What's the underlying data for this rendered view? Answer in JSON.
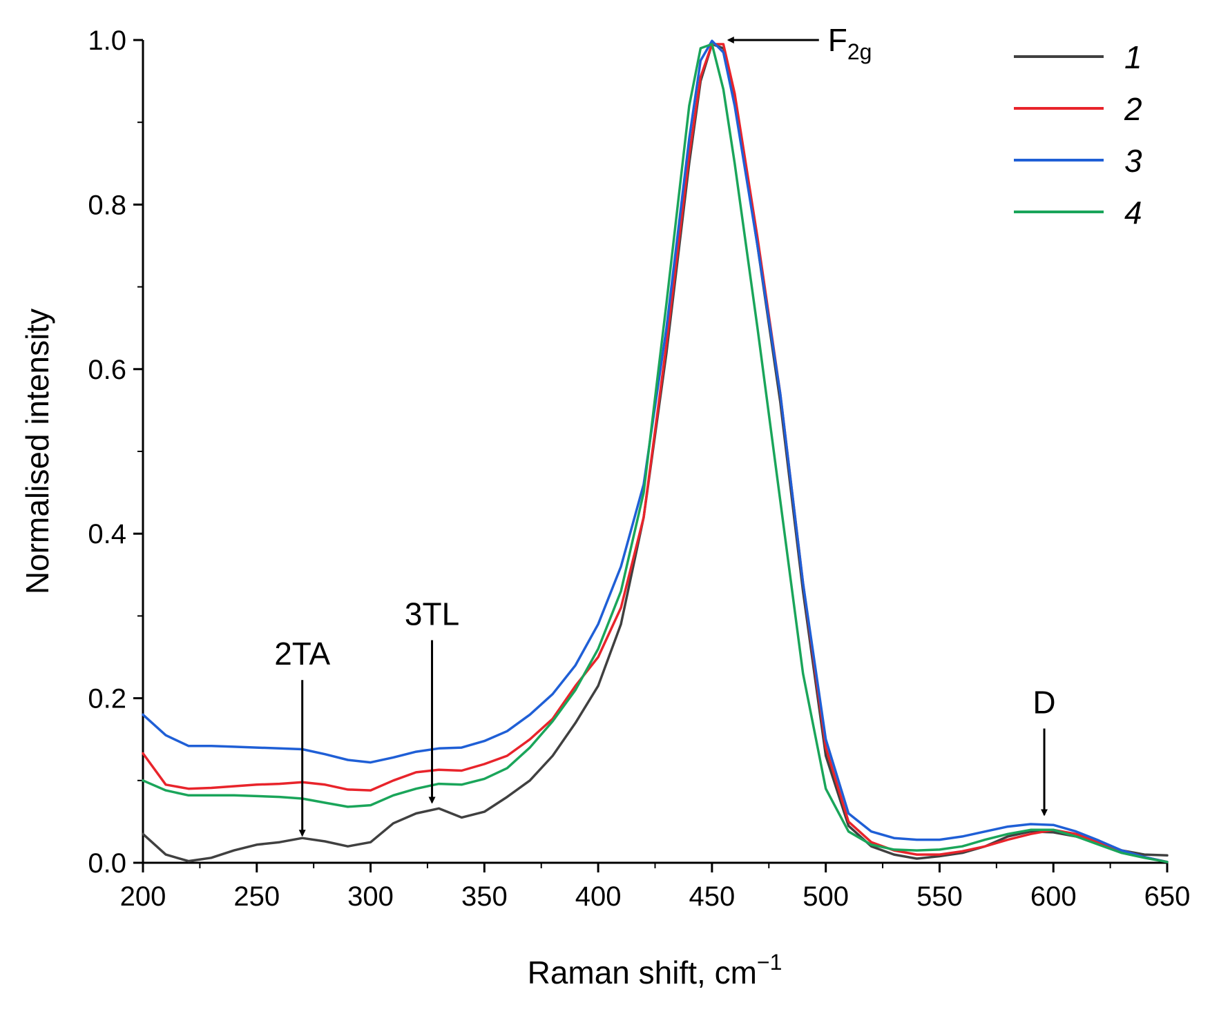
{
  "chart_data": {
    "type": "line",
    "title": "",
    "xlabel": "Raman shift, cm",
    "xlabel_sup": "−1",
    "ylabel": "Normalised intensity",
    "xlim": [
      200,
      650
    ],
    "ylim": [
      0.0,
      1.0
    ],
    "x_ticks": [
      200,
      250,
      300,
      350,
      400,
      450,
      500,
      550,
      600,
      650
    ],
    "x_tick_labels": [
      "200",
      "250",
      "300",
      "350",
      "400",
      "450",
      "500",
      "550",
      "600",
      "650"
    ],
    "y_ticks": [
      0.0,
      0.2,
      0.4,
      0.6,
      0.8,
      1.0
    ],
    "y_tick_labels": [
      "0.0",
      "0.2",
      "0.4",
      "0.6",
      "0.8",
      "1.0"
    ],
    "grid": false,
    "legend_position": "top-right",
    "x": [
      200,
      210,
      220,
      230,
      240,
      250,
      260,
      270,
      280,
      290,
      300,
      310,
      320,
      330,
      340,
      350,
      360,
      370,
      380,
      390,
      400,
      410,
      420,
      430,
      440,
      445,
      450,
      455,
      460,
      470,
      480,
      490,
      500,
      510,
      520,
      530,
      540,
      550,
      560,
      570,
      580,
      590,
      600,
      610,
      620,
      630,
      640,
      650
    ],
    "series": [
      {
        "name": "1",
        "color": "#404040",
        "values": [
          0.035,
          0.01,
          0.002,
          0.006,
          0.015,
          0.022,
          0.025,
          0.03,
          0.026,
          0.02,
          0.025,
          0.048,
          0.06,
          0.066,
          0.055,
          0.062,
          0.08,
          0.1,
          0.13,
          0.17,
          0.215,
          0.29,
          0.42,
          0.62,
          0.85,
          0.95,
          0.995,
          0.99,
          0.93,
          0.75,
          0.56,
          0.33,
          0.13,
          0.045,
          0.02,
          0.01,
          0.005,
          0.008,
          0.012,
          0.02,
          0.032,
          0.038,
          0.037,
          0.032,
          0.024,
          0.015,
          0.01,
          0.009
        ]
      },
      {
        "name": "2",
        "color": "#e8242b",
        "values": [
          0.133,
          0.095,
          0.09,
          0.091,
          0.093,
          0.095,
          0.096,
          0.098,
          0.095,
          0.089,
          0.088,
          0.1,
          0.11,
          0.113,
          0.112,
          0.12,
          0.13,
          0.15,
          0.175,
          0.215,
          0.25,
          0.31,
          0.42,
          0.63,
          0.86,
          0.955,
          0.995,
          0.995,
          0.935,
          0.76,
          0.57,
          0.34,
          0.14,
          0.05,
          0.025,
          0.015,
          0.01,
          0.01,
          0.014,
          0.02,
          0.028,
          0.035,
          0.04,
          0.035,
          0.025,
          0.015,
          0.007,
          0.001
        ]
      },
      {
        "name": "3",
        "color": "#1f5fd6",
        "values": [
          0.18,
          0.155,
          0.142,
          0.142,
          0.141,
          0.14,
          0.139,
          0.138,
          0.132,
          0.125,
          0.122,
          0.128,
          0.135,
          0.139,
          0.14,
          0.148,
          0.16,
          0.18,
          0.205,
          0.24,
          0.29,
          0.36,
          0.46,
          0.65,
          0.88,
          0.975,
          0.999,
          0.985,
          0.92,
          0.75,
          0.57,
          0.34,
          0.15,
          0.06,
          0.038,
          0.03,
          0.028,
          0.028,
          0.032,
          0.038,
          0.044,
          0.047,
          0.046,
          0.038,
          0.027,
          0.015,
          0.007,
          0.001
        ]
      },
      {
        "name": "4",
        "color": "#1aa55a",
        "values": [
          0.1,
          0.088,
          0.082,
          0.082,
          0.082,
          0.081,
          0.08,
          0.078,
          0.073,
          0.068,
          0.07,
          0.082,
          0.09,
          0.096,
          0.095,
          0.102,
          0.115,
          0.14,
          0.172,
          0.21,
          0.26,
          0.33,
          0.45,
          0.68,
          0.92,
          0.99,
          0.995,
          0.94,
          0.85,
          0.65,
          0.44,
          0.23,
          0.09,
          0.038,
          0.022,
          0.016,
          0.015,
          0.016,
          0.02,
          0.028,
          0.035,
          0.04,
          0.04,
          0.032,
          0.022,
          0.012,
          0.006,
          0.001
        ]
      }
    ],
    "annotations": [
      {
        "label": "F",
        "sub": "2g",
        "x": 453,
        "y": 1.0,
        "direction": "left-pointing"
      },
      {
        "label": "2TA",
        "x": 270,
        "y": 0.03,
        "direction": "down-pointing"
      },
      {
        "label": "3TL",
        "x": 327,
        "y": 0.07,
        "direction": "down-pointing"
      },
      {
        "label": "D",
        "x": 596,
        "y": 0.055,
        "direction": "down-pointing"
      }
    ]
  }
}
